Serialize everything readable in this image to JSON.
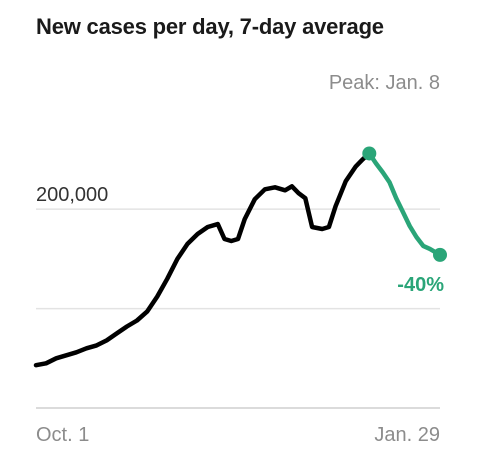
{
  "title": "New cases per day, 7-day average",
  "colors": {
    "line": "#000000",
    "highlight": "#2aa578",
    "grid": "#e3e3e3",
    "axis": "#cfcfcf",
    "muted": "#8c8c8c"
  },
  "annotations": {
    "peak": "Peak: Jan. 8",
    "change": "-40%"
  },
  "chart_data": {
    "type": "line",
    "title": "New cases per day, 7-day average",
    "xlabel": "",
    "ylabel": "",
    "x_tick_labels": [
      "Oct. 1",
      "Jan. 29"
    ],
    "y_tick_labels": [
      "200,000"
    ],
    "ylim": [
      0,
      350000
    ],
    "grid": true,
    "series": [
      {
        "x": [
          "2020-10-01",
          "2020-10-04",
          "2020-10-07",
          "2020-10-10",
          "2020-10-13",
          "2020-10-16",
          "2020-10-19",
          "2020-10-22",
          "2020-10-25",
          "2020-10-28",
          "2020-10-31",
          "2020-11-03",
          "2020-11-06",
          "2020-11-09",
          "2020-11-12",
          "2020-11-15",
          "2020-11-18",
          "2020-11-21",
          "2020-11-24",
          "2020-11-26",
          "2020-11-28",
          "2020-11-30",
          "2020-12-02",
          "2020-12-05",
          "2020-12-08",
          "2020-12-11",
          "2020-12-14",
          "2020-12-16",
          "2020-12-18",
          "2020-12-20",
          "2020-12-22",
          "2020-12-25",
          "2020-12-27",
          "2020-12-29",
          "2021-01-01",
          "2021-01-04",
          "2021-01-06",
          "2021-01-08"
        ],
        "values": [
          43000,
          45000,
          50000,
          53000,
          56000,
          60000,
          63000,
          68000,
          75000,
          82000,
          88000,
          97000,
          112000,
          130000,
          150000,
          165000,
          175000,
          182000,
          185000,
          170000,
          168000,
          170000,
          190000,
          210000,
          220000,
          222000,
          219000,
          223000,
          216000,
          211000,
          182000,
          180000,
          182000,
          203000,
          228000,
          243000,
          250000,
          256000
        ]
      },
      {
        "x": [
          "2021-01-08",
          "2021-01-10",
          "2021-01-12",
          "2021-01-14",
          "2021-01-16",
          "2021-01-18",
          "2021-01-20",
          "2021-01-22",
          "2021-01-24",
          "2021-01-26",
          "2021-01-29"
        ],
        "values": [
          256000,
          246000,
          237000,
          227000,
          211000,
          197000,
          183000,
          172000,
          163000,
          160000,
          154000
        ]
      }
    ]
  }
}
